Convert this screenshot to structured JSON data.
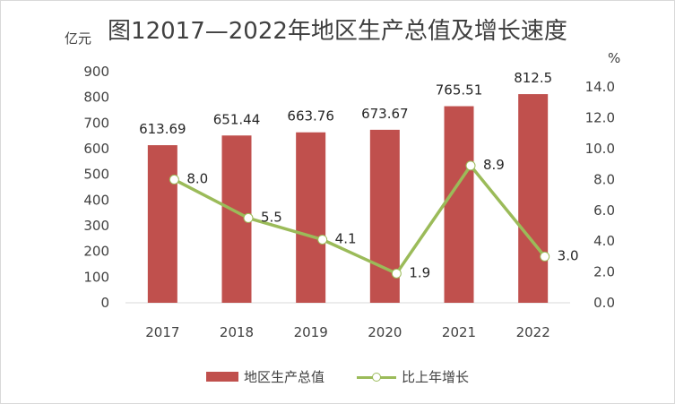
{
  "chart_data": {
    "type": "bar+line",
    "title": "图12017—2022年地区生产总值及增长速度",
    "categories": [
      "2017",
      "2018",
      "2019",
      "2020",
      "2021",
      "2022"
    ],
    "series": [
      {
        "name": "地区生产总值",
        "type": "bar",
        "axis": "left",
        "values": [
          613.69,
          651.44,
          663.76,
          673.67,
          765.51,
          812.5
        ],
        "labels": [
          "613.69",
          "651.44",
          "663.76",
          "673.67",
          "765.51",
          "812.5"
        ],
        "color": "#c0504d"
      },
      {
        "name": "比上年增长",
        "type": "line",
        "axis": "right",
        "values": [
          8.0,
          5.5,
          4.1,
          1.9,
          8.9,
          3.0
        ],
        "labels": [
          "8.0",
          "5.5",
          "4.1",
          "1.9",
          "8.9",
          "3.0"
        ],
        "color": "#9bbb59"
      }
    ],
    "y_left": {
      "unit": "亿元",
      "range": [
        0,
        900
      ],
      "ticks": [
        "0",
        "100",
        "200",
        "300",
        "400",
        "500",
        "600",
        "700",
        "800",
        "900"
      ]
    },
    "y_right": {
      "unit": "%",
      "range": [
        0,
        15
      ],
      "ticks": [
        "0.0",
        "2.0",
        "4.0",
        "6.0",
        "8.0",
        "10.0",
        "12.0",
        "14.0"
      ]
    },
    "grid": false,
    "legend": "bottom"
  }
}
